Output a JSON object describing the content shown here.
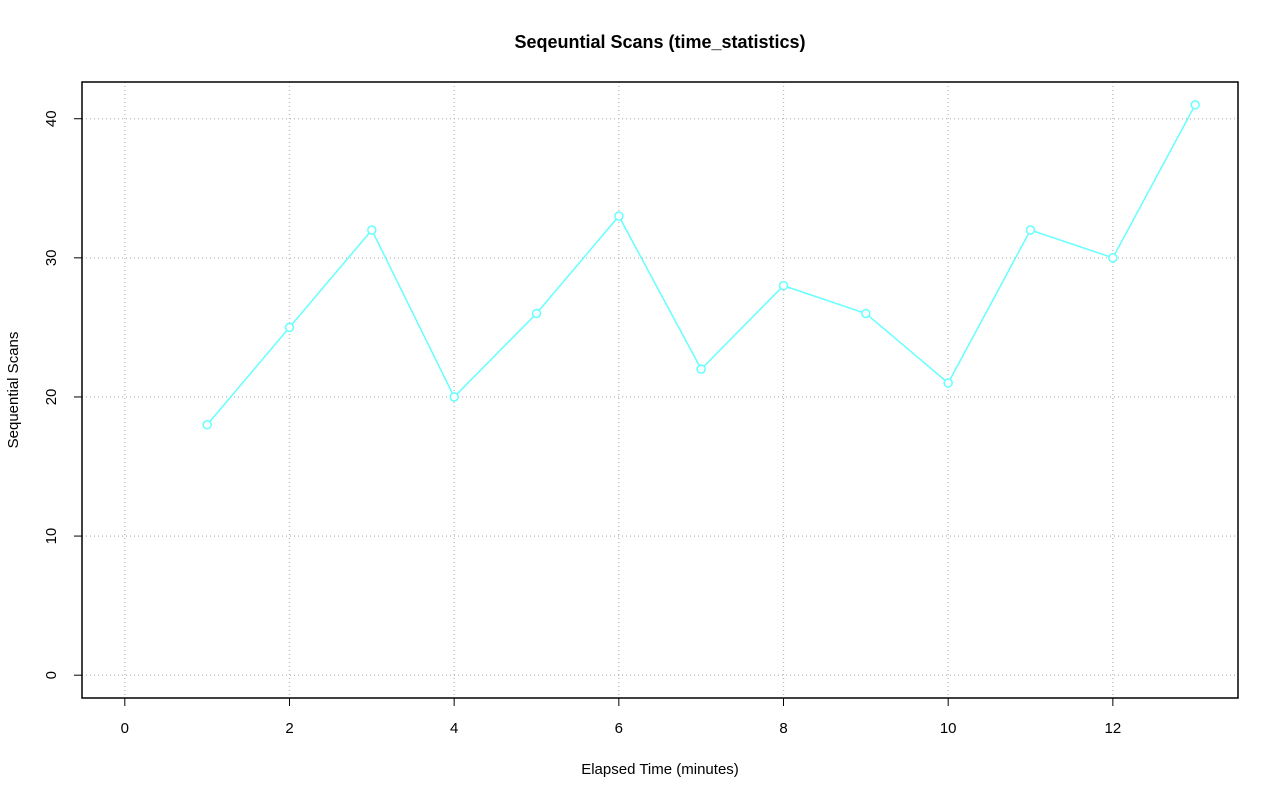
{
  "chart_data": {
    "type": "line",
    "title": "Seqeuntial Scans (time_statistics)",
    "x_label": "Elapsed Time (minutes)",
    "y_label": "Sequential Scans",
    "x": [
      1,
      2,
      3,
      4,
      5,
      6,
      7,
      8,
      9,
      10,
      11,
      12,
      13
    ],
    "values": [
      18,
      25,
      32,
      20,
      26,
      33,
      22,
      28,
      26,
      21,
      32,
      30,
      41
    ],
    "color": "#66ffff",
    "xlim": [
      -0.52,
      13.52
    ],
    "xticks": [
      0,
      2,
      4,
      6,
      8,
      10,
      12
    ],
    "ylim": [
      -1.64,
      42.64
    ],
    "yticks": [
      0,
      10,
      20,
      30,
      40
    ],
    "grid": true
  }
}
